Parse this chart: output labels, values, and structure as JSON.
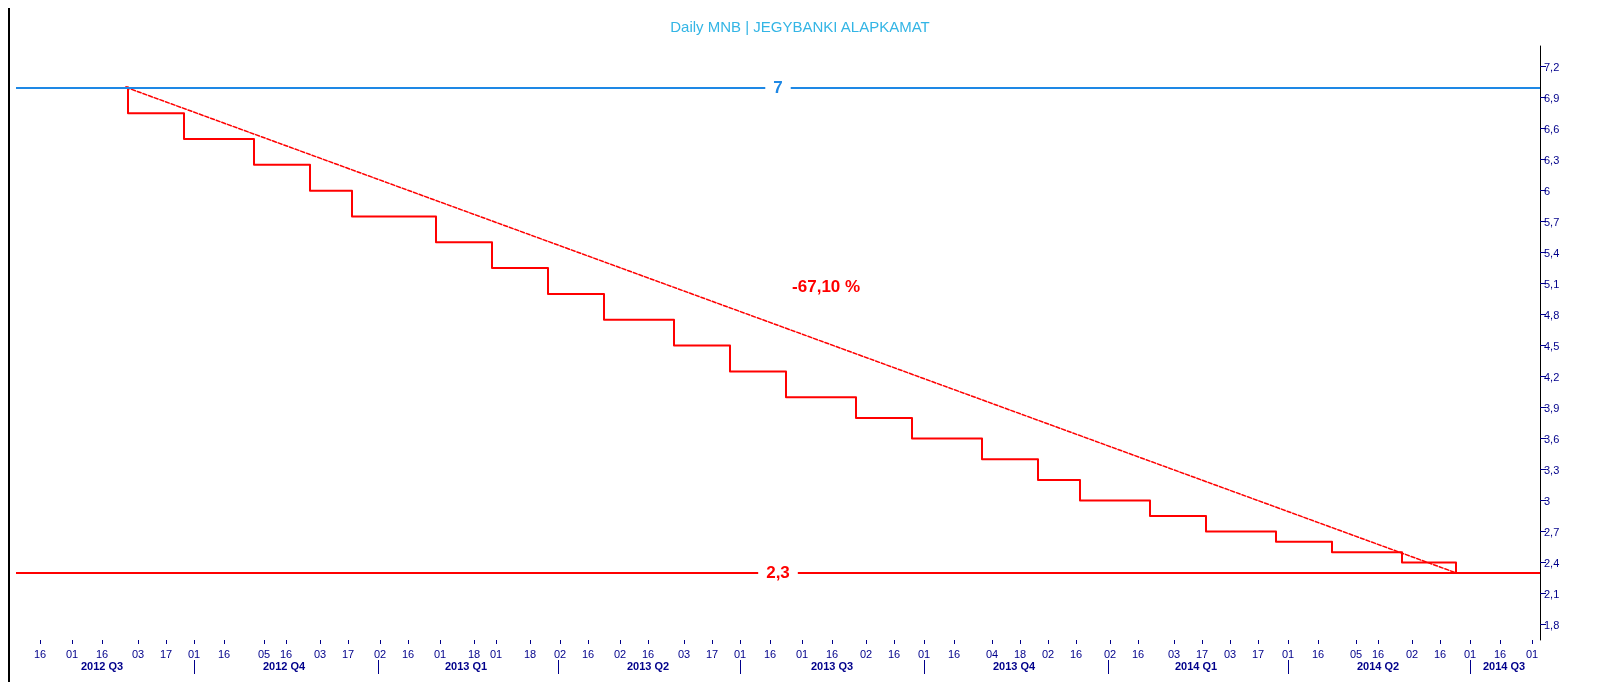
{
  "chart_data": {
    "type": "step",
    "title": "Daily MNB | JEGYBANKI ALAPKAMAT",
    "xlim": [
      "2012-07-04",
      "2014-08-05"
    ],
    "xticks": [
      {
        "value": "2012-07-16",
        "label": "16"
      },
      {
        "value": "2012-08-01",
        "label": "01"
      },
      {
        "value": "2012-08-16",
        "label": "16"
      },
      {
        "value": "2012-09-03",
        "label": "03"
      },
      {
        "value": "2012-09-17",
        "label": "17"
      },
      {
        "value": "2012-10-01",
        "label": "01"
      },
      {
        "value": "2012-10-16",
        "label": "16"
      },
      {
        "value": "2012-11-05",
        "label": "05"
      },
      {
        "value": "2012-11-16",
        "label": "16"
      },
      {
        "value": "2012-12-03",
        "label": "03"
      },
      {
        "value": "2012-12-17",
        "label": "17"
      },
      {
        "value": "2013-01-02",
        "label": "02"
      },
      {
        "value": "2013-01-16",
        "label": "16"
      },
      {
        "value": "2013-02-01",
        "label": "01"
      },
      {
        "value": "2013-02-18",
        "label": "18"
      },
      {
        "value": "2013-03-01",
        "label": "01"
      },
      {
        "value": "2013-03-18",
        "label": "18"
      },
      {
        "value": "2013-04-02",
        "label": "02"
      },
      {
        "value": "2013-04-16",
        "label": "16"
      },
      {
        "value": "2013-05-02",
        "label": "02"
      },
      {
        "value": "2013-05-16",
        "label": "16"
      },
      {
        "value": "2013-06-03",
        "label": "03"
      },
      {
        "value": "2013-06-17",
        "label": "17"
      },
      {
        "value": "2013-07-01",
        "label": "01"
      },
      {
        "value": "2013-07-16",
        "label": "16"
      },
      {
        "value": "2013-08-01",
        "label": "01"
      },
      {
        "value": "2013-08-16",
        "label": "16"
      },
      {
        "value": "2013-09-02",
        "label": "02"
      },
      {
        "value": "2013-09-16",
        "label": "16"
      },
      {
        "value": "2013-10-01",
        "label": "01"
      },
      {
        "value": "2013-10-16",
        "label": "16"
      },
      {
        "value": "2013-11-04",
        "label": "04"
      },
      {
        "value": "2013-11-18",
        "label": "18"
      },
      {
        "value": "2013-12-02",
        "label": "02"
      },
      {
        "value": "2013-12-16",
        "label": "16"
      },
      {
        "value": "2014-01-02",
        "label": "02"
      },
      {
        "value": "2014-01-16",
        "label": "16"
      },
      {
        "value": "2014-02-03",
        "label": "03"
      },
      {
        "value": "2014-02-17",
        "label": "17"
      },
      {
        "value": "2014-03-03",
        "label": "03"
      },
      {
        "value": "2014-03-17",
        "label": "17"
      },
      {
        "value": "2014-04-01",
        "label": "01"
      },
      {
        "value": "2014-04-16",
        "label": "16"
      },
      {
        "value": "2014-05-05",
        "label": "05"
      },
      {
        "value": "2014-05-16",
        "label": "16"
      },
      {
        "value": "2014-06-02",
        "label": "02"
      },
      {
        "value": "2014-06-16",
        "label": "16"
      },
      {
        "value": "2014-07-01",
        "label": "01"
      },
      {
        "value": "2014-07-16",
        "label": "16"
      },
      {
        "value": "2014-08-01",
        "label": "01"
      }
    ],
    "x2lim": [
      "2012-07-04",
      "2014-08-05"
    ],
    "x2ticks": [
      {
        "value": "2012-08-16",
        "label": "2012 Q3"
      },
      {
        "value": "2012-10-01",
        "label": null
      },
      {
        "value": "2012-11-15",
        "label": "2012 Q4"
      },
      {
        "value": "2013-01-01",
        "label": null
      },
      {
        "value": "2013-02-14",
        "label": "2013 Q1"
      },
      {
        "value": "2013-04-01",
        "label": null
      },
      {
        "value": "2013-05-16",
        "label": "2013 Q2"
      },
      {
        "value": "2013-07-01",
        "label": null
      },
      {
        "value": "2013-08-16",
        "label": "2013 Q3"
      },
      {
        "value": "2013-10-01",
        "label": null
      },
      {
        "value": "2013-11-15",
        "label": "2013 Q4"
      },
      {
        "value": "2014-01-01",
        "label": null
      },
      {
        "value": "2014-02-14",
        "label": "2014 Q1"
      },
      {
        "value": "2014-04-01",
        "label": null
      },
      {
        "value": "2014-05-16",
        "label": "2014 Q2"
      },
      {
        "value": "2014-07-01",
        "label": null
      },
      {
        "value": "2014-07-18",
        "label": "2014 Q3"
      }
    ],
    "ylim": [
      1.65,
      7.4
    ],
    "yticks": [
      {
        "value": 1.8,
        "label": "1,8"
      },
      {
        "value": 2.1,
        "label": "2,1"
      },
      {
        "value": 2.4,
        "label": "2,4"
      },
      {
        "value": 2.7,
        "label": "2,7"
      },
      3,
      {
        "value": 3.3,
        "label": "3,3"
      },
      {
        "value": 3.6,
        "label": "3,6"
      },
      {
        "value": 3.9,
        "label": "3,9"
      },
      {
        "value": 4.2,
        "label": "4,2"
      },
      {
        "value": 4.5,
        "label": "4,5"
      },
      {
        "value": 4.8,
        "label": "4,8"
      },
      {
        "value": 5.1,
        "label": "5,1"
      },
      {
        "value": 5.4,
        "label": "5,4"
      },
      {
        "value": 5.7,
        "label": "5,7"
      },
      6,
      {
        "value": 6.3,
        "label": "6,3"
      },
      {
        "value": 6.6,
        "label": "6,6"
      },
      {
        "value": 6.9,
        "label": "6,9"
      },
      {
        "value": 7.2,
        "label": "7,2"
      }
    ],
    "grid": false,
    "marker": "none",
    "series": [
      {
        "color": "#ff0000",
        "line_style": "solid",
        "x": [
          "2012-08-28",
          "2012-08-29",
          "2012-09-26",
          "2012-10-31",
          "2012-11-28",
          "2012-12-19",
          "2013-01-30",
          "2013-02-27",
          "2013-03-27",
          "2013-04-24",
          "2013-05-29",
          "2013-06-26",
          "2013-07-24",
          "2013-08-28",
          "2013-09-25",
          "2013-10-30",
          "2013-11-27",
          "2013-12-18",
          "2014-01-22",
          "2014-02-19",
          "2014-03-26",
          "2014-04-23",
          "2014-05-28",
          "2014-06-24"
        ],
        "values": [
          7,
          6.75,
          6.5,
          6.25,
          6,
          5.75,
          5.5,
          5.25,
          5,
          4.75,
          4.5,
          4.25,
          4,
          3.8,
          3.6,
          3.4,
          3.2,
          3,
          2.85,
          2.7,
          2.6,
          2.5,
          2.4,
          2.3
        ]
      },
      {
        "type": "line",
        "color": "#ff0000",
        "line_style": "dashed",
        "x": [
          "2012-08-28",
          "2014-06-24"
        ],
        "values": [
          7,
          2.3
        ]
      }
    ],
    "ref_lines": [
      {
        "axis": "y",
        "value": 7,
        "label": "7",
        "color": "#1e88e5"
      },
      {
        "axis": "y",
        "value": 2.3,
        "label": "2,3",
        "color": "#ff0000"
      }
    ],
    "annotations": [
      "-67,10 %"
    ]
  }
}
